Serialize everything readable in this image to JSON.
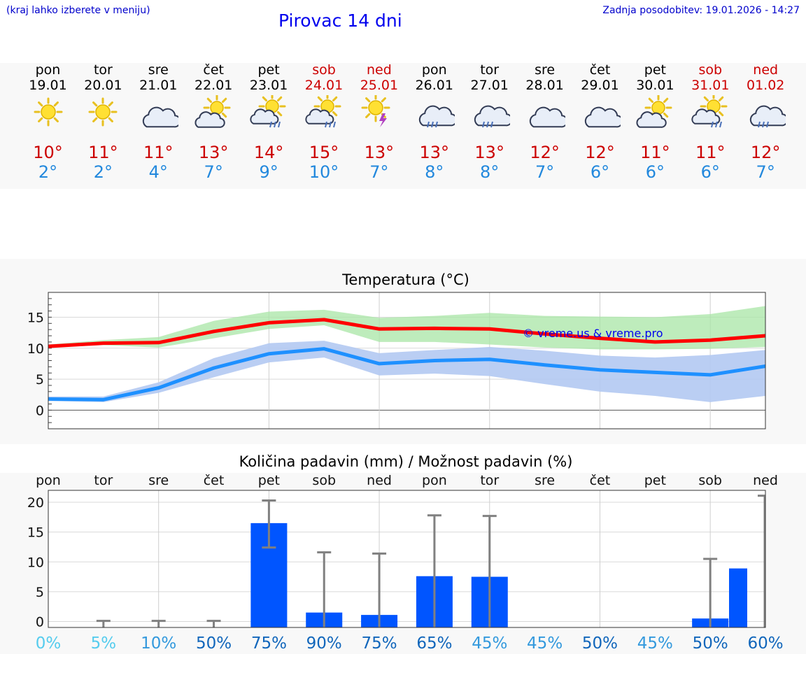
{
  "header": {
    "hint": "(kraj lahko izberete v meniju)",
    "title": "Pirovac 14 dni",
    "updated": "Zadnja posodobitev: 19.01.2026 - 14:27"
  },
  "days": [
    {
      "name": "pon",
      "date": "19.01",
      "weekend": false,
      "icon": "sun-icon",
      "max": "10°",
      "min": "2°"
    },
    {
      "name": "tor",
      "date": "20.01",
      "weekend": false,
      "icon": "sun-icon",
      "max": "11°",
      "min": "2°"
    },
    {
      "name": "sre",
      "date": "21.01",
      "weekend": false,
      "icon": "cloud-icon",
      "max": "11°",
      "min": "4°"
    },
    {
      "name": "čet",
      "date": "22.01",
      "weekend": false,
      "icon": "sun-cloud-icon",
      "max": "13°",
      "min": "7°"
    },
    {
      "name": "pet",
      "date": "23.01",
      "weekend": false,
      "icon": "sun-cloud-rain-icon",
      "max": "14°",
      "min": "9°"
    },
    {
      "name": "sob",
      "date": "24.01",
      "weekend": true,
      "icon": "sun-cloud-rain-icon",
      "max": "15°",
      "min": "10°"
    },
    {
      "name": "ned",
      "date": "25.01",
      "weekend": true,
      "icon": "sun-thunder-icon",
      "max": "13°",
      "min": "7°"
    },
    {
      "name": "pon",
      "date": "26.01",
      "weekend": false,
      "icon": "cloud-rain-icon",
      "max": "13°",
      "min": "8°"
    },
    {
      "name": "tor",
      "date": "27.01",
      "weekend": false,
      "icon": "cloud-rain-icon",
      "max": "13°",
      "min": "8°"
    },
    {
      "name": "sre",
      "date": "28.01",
      "weekend": false,
      "icon": "cloud-icon",
      "max": "12°",
      "min": "7°"
    },
    {
      "name": "čet",
      "date": "29.01",
      "weekend": false,
      "icon": "cloud-icon",
      "max": "12°",
      "min": "6°"
    },
    {
      "name": "pet",
      "date": "30.01",
      "weekend": false,
      "icon": "sun-cloud-icon",
      "max": "11°",
      "min": "6°"
    },
    {
      "name": "sob",
      "date": "31.01",
      "weekend": true,
      "icon": "sun-cloud-rain-icon",
      "max": "11°",
      "min": "6°"
    },
    {
      "name": "ned",
      "date": "01.02",
      "weekend": true,
      "icon": "cloud-rain-icon",
      "max": "12°",
      "min": "7°"
    }
  ],
  "colors": {
    "max_line": "#ff0000",
    "min_line": "#1e90ff",
    "max_band": "#a8e6a6",
    "min_band": "#b3c9f2",
    "overlap_band": "#86c8a8",
    "bar": "#0055ff",
    "whisker": "#808080"
  },
  "chart_data": [
    {
      "type": "line",
      "title": "Temperatura (°C)",
      "watermark": "© vreme.us & vreme.pro",
      "x": [
        0,
        1,
        2,
        3,
        4,
        5,
        6,
        7,
        8,
        9,
        10,
        11,
        12,
        13
      ],
      "ylim": [
        -3,
        19
      ],
      "yticks": [
        0,
        5,
        10,
        15
      ],
      "series": [
        {
          "name": "max",
          "values": [
            10.3,
            10.8,
            10.9,
            12.7,
            14.1,
            14.6,
            13.1,
            13.2,
            13.1,
            12.3,
            11.6,
            11.0,
            11.3,
            12.0
          ],
          "band_low": [
            10.1,
            10.5,
            10.1,
            11.6,
            13.1,
            13.7,
            11.0,
            11.0,
            10.6,
            10.1,
            9.8,
            9.8,
            9.9,
            10.2
          ],
          "band_high": [
            10.6,
            11.3,
            11.8,
            14.4,
            15.9,
            16.2,
            14.9,
            15.2,
            15.7,
            15.2,
            15.1,
            15.0,
            15.5,
            16.8
          ]
        },
        {
          "name": "min",
          "values": [
            1.8,
            1.7,
            3.6,
            6.8,
            9.1,
            9.9,
            7.5,
            8.0,
            8.2,
            7.3,
            6.5,
            6.1,
            5.7,
            7.1
          ],
          "band_low": [
            1.5,
            1.3,
            2.8,
            5.3,
            7.7,
            8.5,
            5.6,
            5.9,
            5.5,
            4.2,
            3.0,
            2.3,
            1.3,
            2.3
          ],
          "band_high": [
            2.2,
            2.2,
            4.5,
            8.4,
            10.8,
            11.2,
            9.2,
            9.7,
            10.2,
            9.6,
            8.8,
            8.5,
            8.9,
            9.7
          ]
        }
      ]
    },
    {
      "type": "bar",
      "title": "Količina padavin (mm) / Možnost padavin (%)",
      "categories": [
        "pon",
        "tor",
        "sre",
        "čet",
        "pet",
        "sob",
        "ned",
        "pon",
        "tor",
        "sre",
        "čet",
        "pet",
        "sob",
        "ned"
      ],
      "values": [
        0,
        0,
        0,
        0,
        16.5,
        1.5,
        1.1,
        7.6,
        7.5,
        0,
        0,
        0,
        0.5,
        8.9
      ],
      "error_low": [
        0,
        0,
        0,
        0,
        12.4,
        0,
        0,
        0,
        0,
        0,
        0,
        0,
        0,
        0
      ],
      "error_high": [
        0,
        0.1,
        0.1,
        0.1,
        20.3,
        11.6,
        11.4,
        17.8,
        17.7,
        0,
        0,
        0,
        10.5,
        21.1
      ],
      "ylim": [
        -1,
        22
      ],
      "yticks": [
        0,
        5,
        10,
        15,
        20
      ],
      "probability": [
        "0%",
        "5%",
        "10%",
        "50%",
        "75%",
        "90%",
        "75%",
        "65%",
        "45%",
        "45%",
        "50%",
        "45%",
        "50%",
        "60%"
      ],
      "prob_colors": [
        "#55ccee",
        "#55ccee",
        "#3399dd",
        "#1166bb",
        "#1166bb",
        "#1166bb",
        "#1166bb",
        "#1166bb",
        "#3399dd",
        "#3399dd",
        "#1166bb",
        "#3399dd",
        "#1166bb",
        "#1166bb"
      ]
    }
  ]
}
